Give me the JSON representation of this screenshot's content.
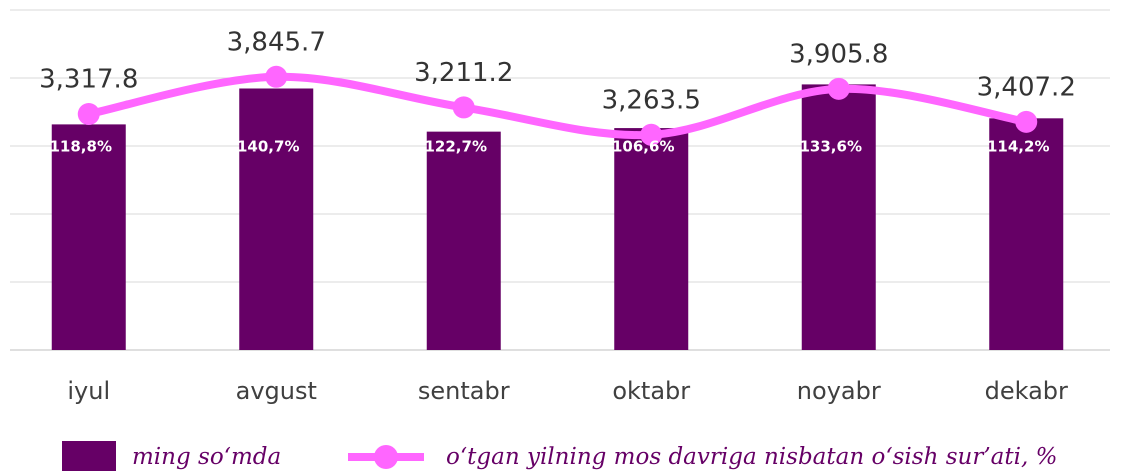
{
  "chart_data": {
    "type": "bar_line",
    "categories": [
      "iyul",
      "avgust",
      "sentabr",
      "oktabr",
      "noyabr",
      "dekabr"
    ],
    "series": [
      {
        "name": "ming so‘mda",
        "type": "bar",
        "color": "#660066",
        "values": [
          3317.8,
          3845.7,
          3211.2,
          3263.5,
          3905.8,
          3407.2
        ],
        "value_labels": [
          "3,317.8",
          "3,845.7",
          "3,211.2",
          "3,263.5",
          "3,905.8",
          "3,407.2"
        ]
      },
      {
        "name": "o‘tgan yilning mos davriga nisbatan o‘sish sur’ati, %",
        "type": "line",
        "axis": "y2",
        "color": "#ff66ff",
        "values": [
          118.8,
          140.7,
          122.7,
          106.6,
          133.6,
          114.2
        ],
        "value_labels": [
          "118,8%",
          "140,7%",
          "122,7%",
          "106,6%",
          "133,6%",
          "114,2%"
        ]
      }
    ],
    "ylim": [
      0,
      5000
    ],
    "yticks": [
      0,
      1000,
      2000,
      3000,
      4000,
      5000
    ],
    "y2lim": [
      -20,
      180
    ],
    "grid": true,
    "legend": "bottom"
  }
}
